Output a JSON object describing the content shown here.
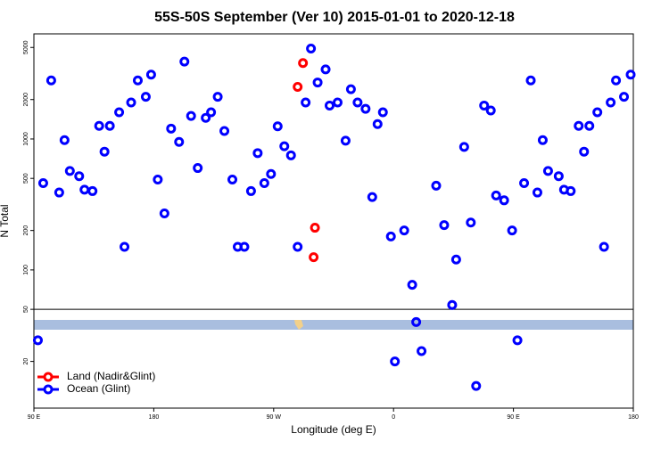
{
  "chart_data": {
    "type": "scatter",
    "title": "55S-50S September (Ver 10)   2015-01-01 to 2020-12-18",
    "x_label": "Longitude (deg E)",
    "y_label": "N Total",
    "xlim": [
      90,
      540
    ],
    "xticks": [
      {
        "value": 90,
        "label": "90 E"
      },
      180,
      {
        "value": 270,
        "label": "90 W"
      },
      {
        "value": 360,
        "label": "0"
      },
      {
        "value": 450,
        "label": "90 E"
      },
      {
        "value": 540,
        "label": "180"
      }
    ],
    "ylim": [
      8.8,
      6350
    ],
    "ylog": true,
    "yticks": [
      20,
      50,
      100,
      200,
      500,
      1000,
      2000,
      5000
    ],
    "hline": 50,
    "legend": "bottom-left",
    "series": [
      {
        "name": "Land (Nadir&Glint)",
        "color": "#ff0000",
        "x": [
          292,
          288,
          301,
          300
        ],
        "values": [
          3800,
          2500,
          210,
          125
        ]
      },
      {
        "name": "Ocean (Glint)",
        "color": "#0000ff",
        "x": [
          93,
          97,
          103,
          109,
          113,
          117,
          124,
          128,
          134,
          139,
          143,
          147,
          154,
          158,
          163,
          168,
          174,
          178,
          183,
          188,
          193,
          199,
          203,
          208,
          213,
          219,
          223,
          228,
          233,
          239,
          243,
          248,
          253,
          258,
          263,
          268,
          273,
          278,
          283,
          288,
          294,
          298,
          303,
          309,
          312,
          318,
          324,
          328,
          333,
          339,
          344,
          348,
          352,
          358,
          361,
          368,
          374,
          377,
          381,
          392,
          398,
          404,
          407,
          413,
          418,
          422,
          428,
          433,
          437,
          443,
          449,
          453,
          458,
          463,
          468,
          472,
          476,
          484,
          488,
          493,
          499,
          503,
          507,
          513,
          518,
          523,
          527,
          533,
          538
        ],
        "values": [
          29,
          460,
          2800,
          390,
          980,
          570,
          520,
          410,
          400,
          1260,
          800,
          1260,
          1600,
          150,
          1900,
          2800,
          2100,
          3100,
          490,
          270,
          1200,
          950,
          3900,
          1500,
          600,
          1450,
          1600,
          2100,
          1150,
          490,
          150,
          150,
          400,
          780,
          460,
          540,
          1250,
          880,
          750,
          150,
          1900,
          4900,
          2700,
          3400,
          1800,
          1900,
          970,
          2400,
          1900,
          1700,
          360,
          1300,
          1600,
          180,
          20,
          200,
          77,
          40,
          24,
          440,
          220,
          54,
          120,
          870,
          230,
          13,
          1800,
          1650,
          370,
          340,
          200,
          29,
          460,
          2800,
          390,
          980,
          570,
          520,
          410,
          400,
          1260,
          800,
          1260,
          1600,
          150,
          1900,
          2800,
          2100,
          3100
        ]
      }
    ]
  }
}
